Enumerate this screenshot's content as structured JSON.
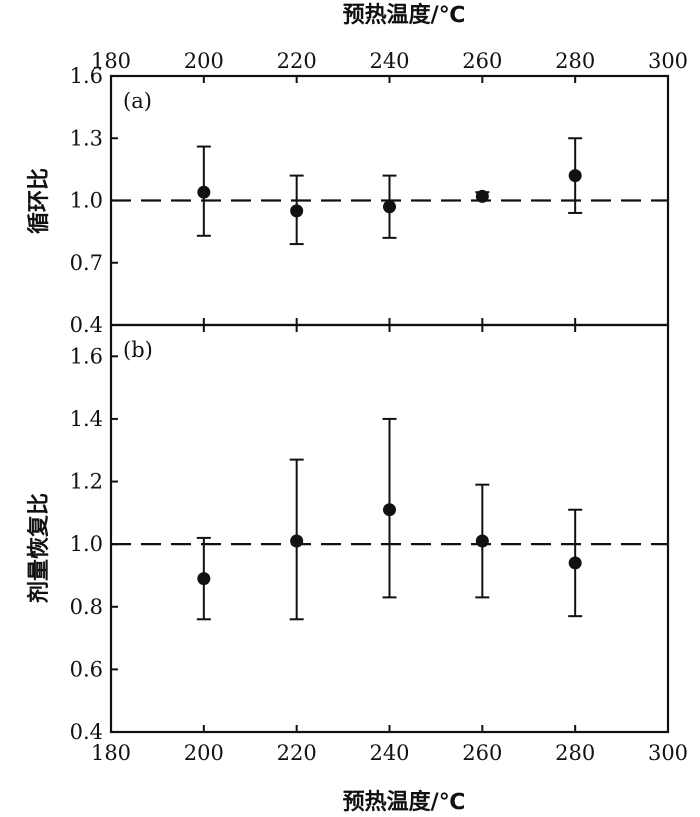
{
  "chart_data": [
    {
      "panel_label": "(a)",
      "type": "scatter",
      "error_bars": true,
      "x_label": "预热温度/℃",
      "x_axis_position": "top",
      "y_label": "循环比",
      "xlim": [
        180,
        300
      ],
      "ylim": [
        0.4,
        1.6
      ],
      "x_ticks": [
        "180",
        "200",
        "220",
        "240",
        "260",
        "280",
        "300"
      ],
      "y_ticks": [
        "0.4",
        "0.7",
        "1.0",
        "1.3",
        "1.6"
      ],
      "reference_line": 1.0,
      "points": [
        {
          "x": 200,
          "y": 1.04,
          "y_low": 0.83,
          "y_high": 1.26
        },
        {
          "x": 220,
          "y": 0.95,
          "y_low": 0.79,
          "y_high": 1.12
        },
        {
          "x": 240,
          "y": 0.97,
          "y_low": 0.82,
          "y_high": 1.12
        },
        {
          "x": 260,
          "y": 1.02,
          "y_low": 1.0,
          "y_high": 1.04
        },
        {
          "x": 280,
          "y": 1.12,
          "y_low": 0.94,
          "y_high": 1.3
        }
      ]
    },
    {
      "panel_label": "(b)",
      "type": "scatter",
      "error_bars": true,
      "x_label": "预热温度/℃",
      "x_axis_position": "bottom",
      "y_label": "剂量恢复比",
      "xlim": [
        180,
        300
      ],
      "ylim": [
        0.4,
        1.7
      ],
      "x_ticks": [
        "180",
        "200",
        "220",
        "240",
        "260",
        "280",
        "300"
      ],
      "y_ticks": [
        "0.4",
        "0.6",
        "0.8",
        "1.0",
        "1.2",
        "1.4",
        "1.6"
      ],
      "reference_line": 1.0,
      "points": [
        {
          "x": 200,
          "y": 0.89,
          "y_low": 0.76,
          "y_high": 1.02
        },
        {
          "x": 220,
          "y": 1.01,
          "y_low": 0.76,
          "y_high": 1.27
        },
        {
          "x": 240,
          "y": 1.11,
          "y_low": 0.83,
          "y_high": 1.4
        },
        {
          "x": 260,
          "y": 1.01,
          "y_low": 0.83,
          "y_high": 1.19
        },
        {
          "x": 280,
          "y": 0.94,
          "y_low": 0.77,
          "y_high": 1.11
        }
      ]
    }
  ]
}
